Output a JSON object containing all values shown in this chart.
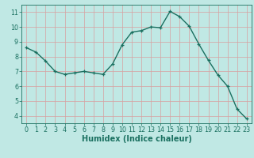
{
  "x": [
    0,
    1,
    2,
    3,
    4,
    5,
    6,
    7,
    8,
    9,
    10,
    11,
    12,
    13,
    14,
    15,
    16,
    17,
    18,
    19,
    20,
    21,
    22,
    23
  ],
  "y": [
    8.6,
    8.3,
    7.7,
    7.0,
    6.8,
    6.9,
    7.0,
    6.9,
    6.8,
    7.5,
    8.8,
    9.65,
    9.75,
    10.0,
    9.95,
    11.05,
    10.7,
    10.05,
    8.85,
    7.75,
    6.75,
    6.0,
    4.45,
    3.8
  ],
  "line_color": "#1a7060",
  "marker_color": "#1a7060",
  "bg_color": "#c0e8e4",
  "grid_color": "#d8a0a0",
  "axis_color": "#1a7060",
  "tick_color": "#1a7060",
  "xlabel": "Humidex (Indice chaleur)",
  "xlim": [
    -0.5,
    23.5
  ],
  "ylim": [
    3.5,
    11.5
  ],
  "yticks": [
    4,
    5,
    6,
    7,
    8,
    9,
    10,
    11
  ],
  "xticks": [
    0,
    1,
    2,
    3,
    4,
    5,
    6,
    7,
    8,
    9,
    10,
    11,
    12,
    13,
    14,
    15,
    16,
    17,
    18,
    19,
    20,
    21,
    22,
    23
  ],
  "tick_fontsize": 5.8,
  "label_fontsize": 7.0,
  "linewidth": 1.0,
  "markersize": 3.5,
  "markeredgewidth": 0.9
}
